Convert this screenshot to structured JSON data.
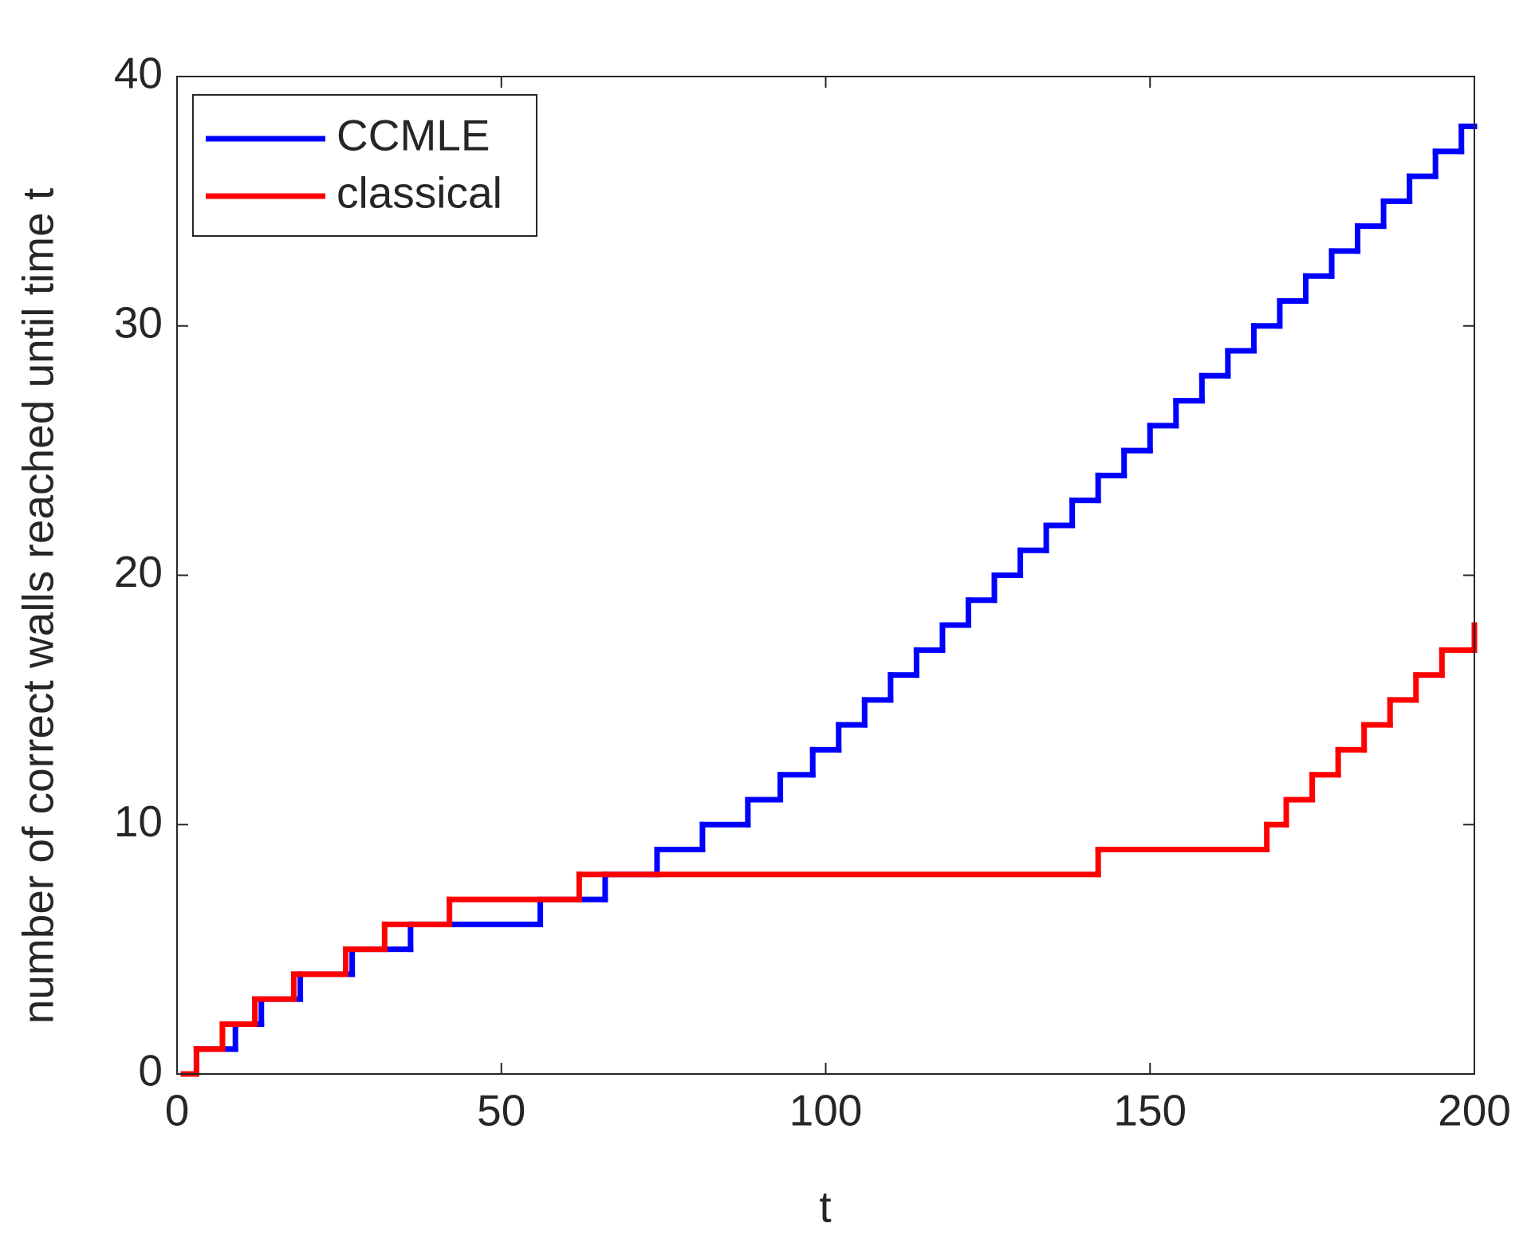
{
  "chart_data": {
    "type": "step",
    "xlabel": "t",
    "ylabel": "number of correct walls reached until time t",
    "xlim": [
      0,
      200
    ],
    "xticks": [
      0,
      50,
      100,
      150,
      200
    ],
    "ylim": [
      0,
      40
    ],
    "yticks": [
      0,
      10,
      20,
      30,
      40
    ],
    "legend": "northwest",
    "series": [
      {
        "name": "CCMLE",
        "color": "#0000ff",
        "x": [
          1,
          3,
          9,
          13,
          19,
          27,
          36,
          56,
          66,
          74,
          81,
          88,
          93,
          98,
          102,
          106,
          110,
          114,
          118,
          122,
          126,
          130,
          134,
          138,
          142,
          146,
          150,
          154,
          158,
          162,
          166,
          170,
          174,
          178,
          182,
          186,
          190,
          194,
          198,
          200
        ],
        "values": [
          0,
          1,
          2,
          3,
          4,
          5,
          6,
          7,
          8,
          9,
          10,
          11,
          12,
          13,
          14,
          15,
          16,
          17,
          18,
          19,
          20,
          21,
          22,
          23,
          24,
          25,
          26,
          27,
          28,
          29,
          30,
          31,
          32,
          33,
          34,
          35,
          36,
          37,
          38,
          38
        ]
      },
      {
        "name": "classical",
        "color": "#ff0000",
        "x": [
          1,
          3,
          7,
          12,
          18,
          26,
          32,
          42,
          62,
          142,
          168,
          171,
          175,
          179,
          183,
          187,
          191,
          195,
          200
        ],
        "values": [
          0,
          1,
          2,
          3,
          4,
          5,
          6,
          7,
          8,
          9,
          10,
          11,
          12,
          13,
          14,
          15,
          16,
          17,
          18
        ]
      }
    ]
  }
}
